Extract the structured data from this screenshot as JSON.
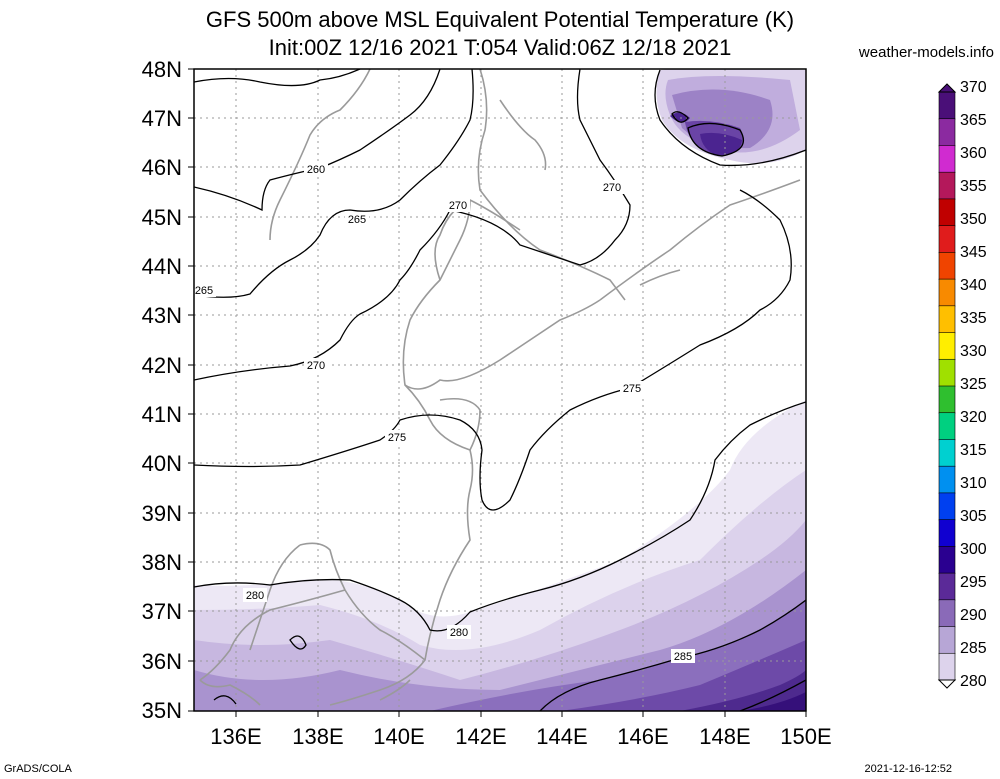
{
  "header": {
    "title_line1": "GFS 500m above MSL Equivalent Potential Temperature (K)",
    "title_line2": "Init:00Z 12/16 2021 T:054 Valid:06Z 12/18 2021",
    "credit": "weather-models.info"
  },
  "axes": {
    "lat_labels": [
      "48N",
      "47N",
      "46N",
      "45N",
      "44N",
      "43N",
      "42N",
      "41N",
      "40N",
      "39N",
      "38N",
      "37N",
      "36N",
      "35N"
    ],
    "lon_labels": [
      "136E",
      "138E",
      "140E",
      "142E",
      "144E",
      "146E",
      "148E",
      "150E"
    ]
  },
  "contour_labels": [
    "260",
    "265",
    "270",
    "270",
    "265",
    "270",
    "275",
    "275",
    "280",
    "280",
    "285"
  ],
  "colorbar": {
    "labels": [
      "370",
      "365",
      "360",
      "355",
      "350",
      "345",
      "340",
      "335",
      "330",
      "325",
      "320",
      "315",
      "310",
      "305",
      "300",
      "295",
      "290",
      "285",
      "280"
    ],
    "colors": [
      "#4a0f78",
      "#8b2aa0",
      "#d02bd0",
      "#b4185b",
      "#c00000",
      "#e01c1c",
      "#f04400",
      "#f88a00",
      "#ffbf00",
      "#ffee00",
      "#a0e000",
      "#2fbf2f",
      "#00d080",
      "#00d0d0",
      "#0090f0",
      "#0040f0",
      "#1000d0",
      "#2a0090",
      "#5b2a98",
      "#8a6ab8",
      "#b7a6d6",
      "#ddd3ec"
    ]
  },
  "footer": {
    "left": "GrADS/COLA",
    "right": "2021-12-16-12:52"
  }
}
